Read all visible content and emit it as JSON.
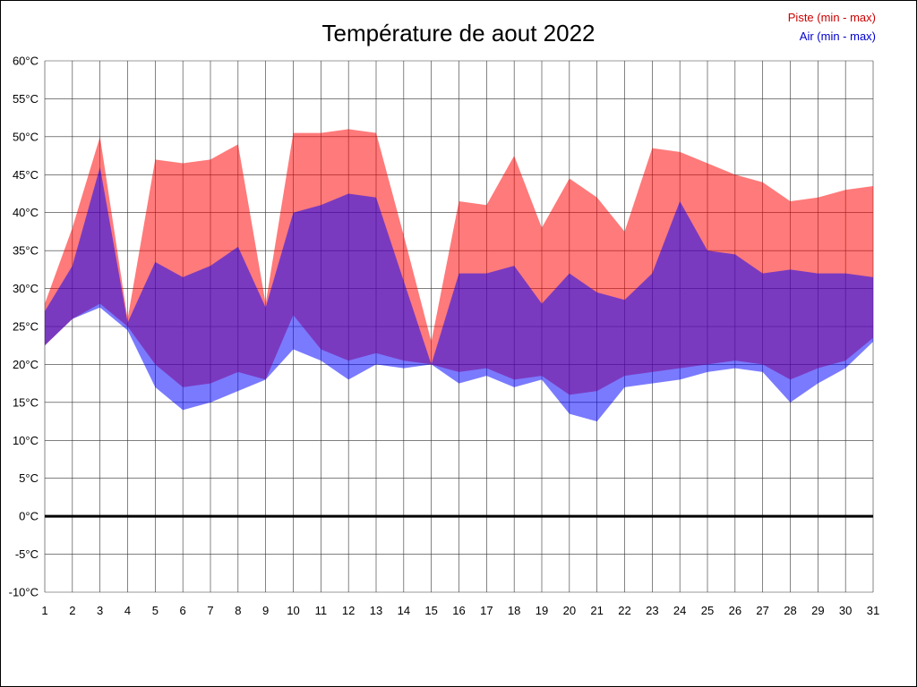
{
  "title": "Température de aout 2022",
  "legend": {
    "position": "top-right"
  },
  "chart_data": {
    "type": "area",
    "title": "Température de aout 2022",
    "xlabel": "",
    "ylabel": "",
    "x": [
      1,
      2,
      3,
      4,
      5,
      6,
      7,
      8,
      9,
      10,
      11,
      12,
      13,
      14,
      15,
      16,
      17,
      18,
      19,
      20,
      21,
      22,
      23,
      24,
      25,
      26,
      27,
      28,
      29,
      30,
      31
    ],
    "xlim": [
      1,
      31
    ],
    "ylim": [
      -10,
      60
    ],
    "ytick_step": 5,
    "y_unit": "°C",
    "grid": true,
    "grid_color": "#333333",
    "zero_line": true,
    "zero_line_color": "#000000",
    "legend_position": "top-right",
    "series": [
      {
        "name": "Piste (min - max)",
        "color": "#ff0000",
        "label_color": "#cc0000",
        "fill_opacity": 0.52,
        "max": [
          28,
          38,
          50,
          26,
          47,
          46.5,
          47,
          49,
          28,
          50.5,
          50.5,
          51,
          50.5,
          37,
          23,
          41.5,
          41,
          47.5,
          38,
          44.5,
          42,
          37.5,
          48.5,
          48,
          46.5,
          45,
          44,
          41.5,
          42,
          43,
          43.5
        ],
        "min": [
          22.5,
          26,
          28,
          25,
          20,
          17,
          17.5,
          19,
          18,
          26.5,
          22,
          20.5,
          21.5,
          20.5,
          20,
          19,
          19.5,
          18,
          18.5,
          16,
          16.5,
          18.5,
          19,
          19.5,
          20,
          20.5,
          20,
          18,
          19.5,
          20.5,
          23.5
        ]
      },
      {
        "name": "Air (min - max)",
        "color": "#0000ff",
        "label_color": "#0000cc",
        "fill_opacity": 0.52,
        "max": [
          27,
          33,
          46,
          25.5,
          33.5,
          31.5,
          33,
          35.5,
          27.5,
          40,
          41,
          42.5,
          42,
          31,
          20,
          32,
          32,
          33,
          28,
          32,
          29.5,
          28.5,
          32,
          41.5,
          35,
          34.5,
          32,
          32.5,
          32,
          32,
          31.5
        ],
        "min": [
          22.5,
          26,
          27.5,
          24.5,
          17,
          14,
          15,
          16.5,
          18,
          22,
          20.5,
          18,
          20,
          19.5,
          20,
          17.5,
          18.5,
          17,
          18,
          13.5,
          12.5,
          17,
          17.5,
          18,
          19,
          19.5,
          19,
          15,
          17.5,
          19.5,
          23
        ]
      }
    ]
  }
}
